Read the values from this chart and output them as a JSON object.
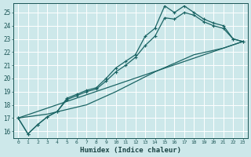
{
  "xlabel": "Humidex (Indice chaleur)",
  "bg_color": "#cde8ea",
  "grid_color": "#ffffff",
  "line_color": "#1a6464",
  "xlim": [
    -0.5,
    23.5
  ],
  "ylim": [
    15.5,
    25.7
  ],
  "xticks": [
    0,
    1,
    2,
    3,
    4,
    5,
    6,
    7,
    8,
    9,
    10,
    11,
    12,
    13,
    14,
    15,
    16,
    17,
    18,
    19,
    20,
    21,
    22,
    23
  ],
  "yticks": [
    16,
    17,
    18,
    19,
    20,
    21,
    22,
    23,
    24,
    25
  ],
  "series1_x": [
    0,
    1,
    2,
    3,
    4,
    5,
    6,
    7,
    8,
    9,
    10,
    11,
    12,
    13,
    14,
    15,
    16,
    17,
    18,
    19,
    20,
    21,
    22,
    23
  ],
  "series1_y": [
    17.0,
    15.8,
    16.5,
    17.1,
    17.5,
    18.5,
    18.8,
    19.1,
    19.3,
    20.0,
    20.8,
    21.3,
    21.8,
    23.2,
    23.8,
    25.5,
    25.0,
    25.5,
    25.0,
    24.5,
    24.2,
    24.0,
    23.0,
    22.8
  ],
  "series2_x": [
    0,
    1,
    2,
    3,
    4,
    5,
    6,
    7,
    8,
    9,
    10,
    11,
    12,
    13,
    14,
    15,
    16,
    17,
    18,
    19,
    20,
    21,
    22,
    23
  ],
  "series2_y": [
    17.0,
    15.8,
    16.5,
    17.1,
    17.5,
    18.4,
    18.7,
    19.0,
    19.2,
    19.8,
    20.5,
    21.0,
    21.6,
    22.5,
    23.2,
    24.6,
    24.5,
    25.0,
    24.8,
    24.3,
    24.0,
    23.8,
    23.0,
    22.8
  ],
  "series3_x": [
    0,
    23
  ],
  "series3_y": [
    17.0,
    22.8
  ],
  "series4_x": [
    0,
    3,
    7,
    10,
    14,
    18,
    21,
    23
  ],
  "series4_y": [
    17.0,
    17.3,
    18.0,
    19.0,
    20.5,
    21.8,
    22.3,
    22.8
  ]
}
